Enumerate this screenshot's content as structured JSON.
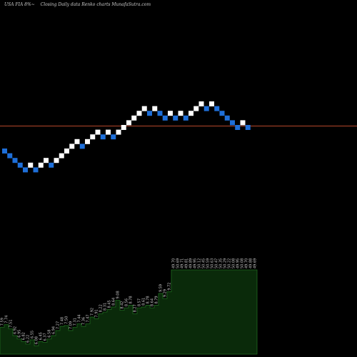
{
  "header": {
    "symbol": "USA FIA 8%~",
    "title": "Closing Daily data  Renko  charts MunafaSutra.com"
  },
  "colors": {
    "background": "#000000",
    "up_brick": "#ffffff",
    "down_brick": "#1e6fd9",
    "reference_line": "#b5462b",
    "volume_fill": "#0a2a0a",
    "volume_stroke": "#1f6a1f"
  },
  "chart_data": {
    "type": "renko",
    "bricks": [
      {
        "level": 0,
        "dir": "down"
      },
      {
        "level": -1,
        "dir": "down"
      },
      {
        "level": -2,
        "dir": "down"
      },
      {
        "level": -3,
        "dir": "down"
      },
      {
        "level": -4,
        "dir": "down"
      },
      {
        "level": -3,
        "dir": "up"
      },
      {
        "level": -4,
        "dir": "down"
      },
      {
        "level": -3,
        "dir": "up"
      },
      {
        "level": -2,
        "dir": "up"
      },
      {
        "level": -3,
        "dir": "down"
      },
      {
        "level": -2,
        "dir": "up"
      },
      {
        "level": -1,
        "dir": "up"
      },
      {
        "level": 0,
        "dir": "up"
      },
      {
        "level": 1,
        "dir": "up"
      },
      {
        "level": 2,
        "dir": "up"
      },
      {
        "level": 1,
        "dir": "down"
      },
      {
        "level": 2,
        "dir": "up"
      },
      {
        "level": 3,
        "dir": "up"
      },
      {
        "level": 4,
        "dir": "up"
      },
      {
        "level": 3,
        "dir": "down"
      },
      {
        "level": 4,
        "dir": "up"
      },
      {
        "level": 3,
        "dir": "down"
      },
      {
        "level": 4,
        "dir": "up"
      },
      {
        "level": 5,
        "dir": "up"
      },
      {
        "level": 6,
        "dir": "up"
      },
      {
        "level": 7,
        "dir": "up"
      },
      {
        "level": 8,
        "dir": "up"
      },
      {
        "level": 9,
        "dir": "up"
      },
      {
        "level": 8,
        "dir": "down"
      },
      {
        "level": 9,
        "dir": "up"
      },
      {
        "level": 8,
        "dir": "down"
      },
      {
        "level": 7,
        "dir": "down"
      },
      {
        "level": 8,
        "dir": "up"
      },
      {
        "level": 7,
        "dir": "down"
      },
      {
        "level": 8,
        "dir": "up"
      },
      {
        "level": 7,
        "dir": "down"
      },
      {
        "level": 8,
        "dir": "up"
      },
      {
        "level": 9,
        "dir": "up"
      },
      {
        "level": 10,
        "dir": "up"
      },
      {
        "level": 9,
        "dir": "down"
      },
      {
        "level": 10,
        "dir": "up"
      },
      {
        "level": 9,
        "dir": "down"
      },
      {
        "level": 8,
        "dir": "down"
      },
      {
        "level": 7,
        "dir": "down"
      },
      {
        "level": 6,
        "dir": "down"
      },
      {
        "level": 5,
        "dir": "down"
      },
      {
        "level": 6,
        "dir": "up"
      },
      {
        "level": 5,
        "dir": "down"
      }
    ],
    "reference_level": 5.3,
    "volume_labels": [
      "7.59",
      "7.74",
      "7.51",
      "6.92",
      "6.95",
      "6.82",
      "6.22",
      "6.55",
      "6.08",
      "6.45",
      "6.37",
      "6.58",
      "6.94",
      "7.27",
      "7.48",
      "7.50",
      "7.09",
      "7.31",
      "7.44",
      "7.36",
      "7.47",
      "7.92",
      "7.91",
      "8.22",
      "8.31",
      "8.45",
      "8.64",
      "9.08",
      "8.42",
      "8.56",
      "8.78",
      "8.27",
      "8.57",
      "8.61",
      "8.78",
      "8.64",
      "8.79",
      "9.59",
      "9.29",
      "9.72",
      "49.70",
      "50.69",
      "49.71",
      "49.81",
      "49.89",
      "49.95",
      "50.12",
      "50.45",
      "50.59",
      "50.63",
      "50.47",
      "50.35",
      "50.29",
      "50.22",
      "50.08",
      "49.95",
      "50.08",
      "49.70",
      "49.88",
      "49.69"
    ],
    "volume_heights": [
      0.32,
      0.35,
      0.3,
      0.22,
      0.18,
      0.15,
      0.12,
      0.17,
      0.1,
      0.15,
      0.14,
      0.18,
      0.22,
      0.28,
      0.33,
      0.34,
      0.28,
      0.32,
      0.36,
      0.33,
      0.36,
      0.44,
      0.42,
      0.48,
      0.5,
      0.53,
      0.56,
      0.64,
      0.52,
      0.55,
      0.58,
      0.48,
      0.55,
      0.56,
      0.58,
      0.55,
      0.58,
      0.72,
      0.66,
      0.74,
      1.0,
      1.0,
      1.0,
      1.0,
      1.0,
      1.0,
      1.0,
      1.0,
      1.0,
      1.0,
      1.0,
      1.0,
      1.0,
      1.0,
      1.0,
      1.0,
      1.0,
      1.0,
      1.0,
      1.0
    ]
  }
}
